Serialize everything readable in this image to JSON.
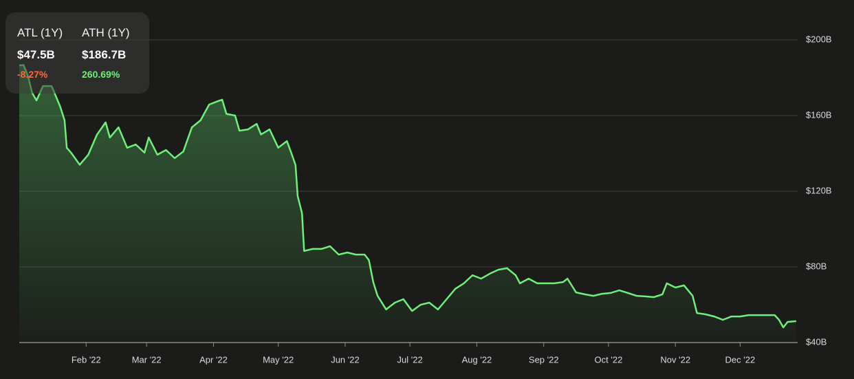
{
  "chart_data": {
    "type": "line",
    "color": "#6ef07a",
    "grid": true,
    "stats": [
      {
        "label": "ATL (1Y)",
        "value": "$47.5B",
        "change": "-8.27%",
        "color": "#ff6a3d"
      },
      {
        "label": "ATH (1Y)",
        "value": "$186.7B",
        "change": "260.69%",
        "color": "#6ef07a"
      }
    ],
    "xlim": [
      "2022-01-01",
      "2022-12-27"
    ],
    "xticks": [
      {
        "value": "2022-02-01",
        "label": "Feb '22"
      },
      {
        "value": "2022-03-01",
        "label": "Mar '22"
      },
      {
        "value": "2022-04-01",
        "label": "Apr '22"
      },
      {
        "value": "2022-05-01",
        "label": "May '22"
      },
      {
        "value": "2022-06-01",
        "label": "Jun '22"
      },
      {
        "value": "2022-07-01",
        "label": "Jul '22"
      },
      {
        "value": "2022-08-01",
        "label": "Aug '22"
      },
      {
        "value": "2022-09-01",
        "label": "Sep '22"
      },
      {
        "value": "2022-10-01",
        "label": "Oct '22"
      },
      {
        "value": "2022-11-01",
        "label": "Nov '22"
      },
      {
        "value": "2022-12-01",
        "label": "Dec '22"
      }
    ],
    "ylim": [
      40,
      220
    ],
    "yticks": [
      {
        "value": 40,
        "label": "$40B"
      },
      {
        "value": 80,
        "label": "$80B"
      },
      {
        "value": 120,
        "label": "$120B"
      },
      {
        "value": 160,
        "label": "$160B"
      },
      {
        "value": 200,
        "label": "$200B"
      }
    ],
    "x": [
      "2022-01-01",
      "2022-01-03",
      "2022-01-05",
      "2022-01-07",
      "2022-01-09",
      "2022-01-12",
      "2022-01-16",
      "2022-01-20",
      "2022-01-22",
      "2022-01-23",
      "2022-01-25",
      "2022-01-29",
      "2022-02-02",
      "2022-02-06",
      "2022-02-10",
      "2022-02-12",
      "2022-02-16",
      "2022-02-20",
      "2022-02-24",
      "2022-02-28",
      "2022-03-02",
      "2022-03-06",
      "2022-03-10",
      "2022-03-14",
      "2022-03-18",
      "2022-03-22",
      "2022-03-26",
      "2022-03-30",
      "2022-04-03",
      "2022-04-05",
      "2022-04-07",
      "2022-04-11",
      "2022-04-13",
      "2022-04-17",
      "2022-04-21",
      "2022-04-23",
      "2022-04-27",
      "2022-05-01",
      "2022-05-05",
      "2022-05-07",
      "2022-05-09",
      "2022-05-10",
      "2022-05-12",
      "2022-05-13",
      "2022-05-17",
      "2022-05-21",
      "2022-05-25",
      "2022-05-29",
      "2022-06-02",
      "2022-06-06",
      "2022-06-10",
      "2022-06-12",
      "2022-06-14",
      "2022-06-16",
      "2022-06-20",
      "2022-06-24",
      "2022-06-28",
      "2022-07-02",
      "2022-07-06",
      "2022-07-10",
      "2022-07-14",
      "2022-07-18",
      "2022-07-22",
      "2022-07-26",
      "2022-07-30",
      "2022-08-03",
      "2022-08-07",
      "2022-08-11",
      "2022-08-15",
      "2022-08-19",
      "2022-08-21",
      "2022-08-25",
      "2022-08-29",
      "2022-09-02",
      "2022-09-06",
      "2022-09-10",
      "2022-09-12",
      "2022-09-16",
      "2022-09-20",
      "2022-09-24",
      "2022-09-28",
      "2022-10-02",
      "2022-10-06",
      "2022-10-10",
      "2022-10-14",
      "2022-10-18",
      "2022-10-22",
      "2022-10-26",
      "2022-10-28",
      "2022-11-01",
      "2022-11-05",
      "2022-11-09",
      "2022-11-11",
      "2022-11-15",
      "2022-11-19",
      "2022-11-23",
      "2022-11-27",
      "2022-12-01",
      "2022-12-05",
      "2022-12-09",
      "2022-12-13",
      "2022-12-17",
      "2022-12-19",
      "2022-12-21",
      "2022-12-23",
      "2022-12-27"
    ],
    "values": [
      186.5,
      186.7,
      181,
      172,
      168,
      175.6,
      175.6,
      164.7,
      157.5,
      143,
      140.4,
      134,
      139.3,
      149.9,
      156.4,
      148.4,
      153.8,
      143,
      144.7,
      140.4,
      148.4,
      139.3,
      141.8,
      137.5,
      141,
      153.8,
      157.5,
      165.8,
      167.6,
      168.4,
      160.9,
      160,
      152,
      152.7,
      155.6,
      150,
      152.7,
      143,
      146.5,
      140.4,
      133.8,
      117.5,
      108.4,
      88.4,
      89.5,
      89.5,
      90.9,
      86.5,
      87.6,
      86.5,
      86.5,
      83.6,
      72,
      64.7,
      57.5,
      61.1,
      62.9,
      56.7,
      60,
      61.1,
      57.5,
      62.9,
      68.4,
      71.3,
      75.6,
      73.8,
      76.4,
      78.5,
      79.3,
      75.6,
      71.3,
      73.8,
      71.3,
      71.3,
      71.3,
      72,
      73.8,
      66.5,
      65.5,
      64.7,
      65.8,
      66.2,
      67.6,
      66.2,
      64.7,
      64.4,
      64,
      65.5,
      71.3,
      69.1,
      70.2,
      64.7,
      55.6,
      54.9,
      53.8,
      52,
      53.8,
      53.8,
      54.5,
      54.5,
      54.5,
      54.5,
      52,
      48,
      50.9,
      51.3
    ]
  }
}
